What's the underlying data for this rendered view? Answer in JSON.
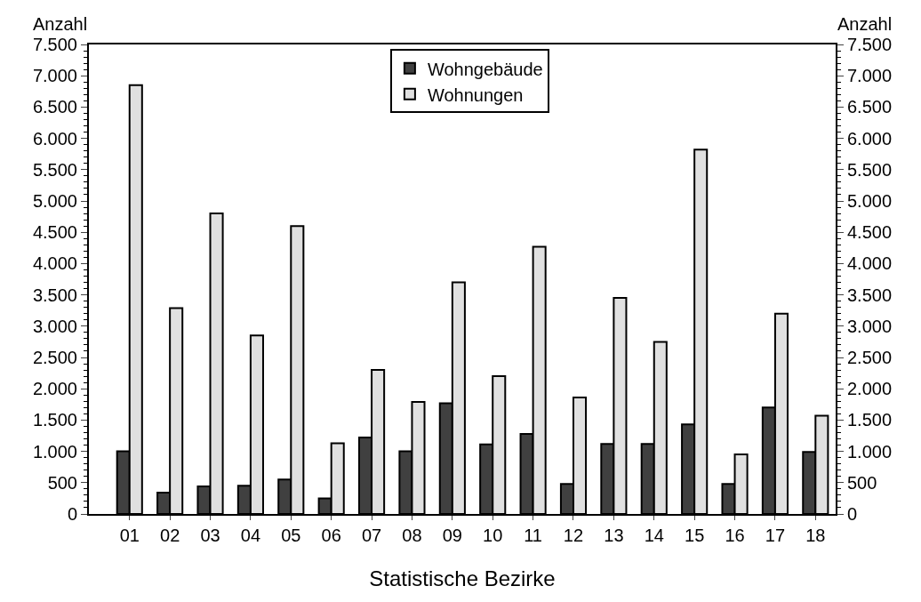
{
  "chart_data": {
    "type": "bar",
    "xlabel": "Statistische Bezirke",
    "ylabel": "Anzahl",
    "y2label": "Anzahl",
    "categories": [
      "01",
      "02",
      "03",
      "04",
      "05",
      "06",
      "07",
      "08",
      "09",
      "10",
      "11",
      "12",
      "13",
      "14",
      "15",
      "16",
      "17",
      "18"
    ],
    "series": [
      {
        "name": "Wohngebäude",
        "color": "#404040",
        "values": [
          1000,
          340,
          440,
          450,
          550,
          250,
          1220,
          1000,
          1770,
          1110,
          1280,
          480,
          1120,
          1120,
          1430,
          480,
          1700,
          990
        ]
      },
      {
        "name": "Wohnungen",
        "color": "#e0e0e0",
        "values": [
          6850,
          3290,
          4800,
          2850,
          4600,
          1130,
          2300,
          1790,
          3700,
          2200,
          4270,
          1860,
          3450,
          2750,
          5820,
          950,
          3200,
          1570
        ]
      }
    ],
    "ylim": [
      0,
      7500
    ],
    "yticks": [
      0,
      500,
      {
        "value": 1000,
        "label": "1.000"
      },
      {
        "value": 1500,
        "label": "1.500"
      },
      {
        "value": 2000,
        "label": "2.000"
      },
      {
        "value": 2500,
        "label": "2.500"
      },
      {
        "value": 3000,
        "label": "3.000"
      },
      {
        "value": 3500,
        "label": "3.500"
      },
      {
        "value": 4000,
        "label": "4.000"
      },
      {
        "value": 4500,
        "label": "4.500"
      },
      {
        "value": 5000,
        "label": "5.000"
      },
      {
        "value": 5500,
        "label": "5.500"
      },
      {
        "value": 6000,
        "label": "6.000"
      },
      {
        "value": 6500,
        "label": "6.500"
      },
      {
        "value": 7000,
        "label": "7.000"
      },
      {
        "value": 7500,
        "label": "7.500"
      }
    ],
    "y2lim": [
      0,
      7500
    ],
    "y2ticks": [
      0,
      500,
      {
        "value": 1000,
        "label": "1.000"
      },
      {
        "value": 1500,
        "label": "1.500"
      },
      {
        "value": 2000,
        "label": "2.000"
      },
      {
        "value": 2500,
        "label": "2.500"
      },
      {
        "value": 3000,
        "label": "3.000"
      },
      {
        "value": 3500,
        "label": "3.500"
      },
      {
        "value": 4000,
        "label": "4.000"
      },
      {
        "value": 4500,
        "label": "4.500"
      },
      {
        "value": 5000,
        "label": "5.000"
      },
      {
        "value": 5500,
        "label": "5.500"
      },
      {
        "value": 6000,
        "label": "6.000"
      },
      {
        "value": 6500,
        "label": "6.500"
      },
      {
        "value": 7000,
        "label": "7.000"
      },
      {
        "value": 7500,
        "label": "7.500"
      }
    ],
    "legend": "top"
  }
}
